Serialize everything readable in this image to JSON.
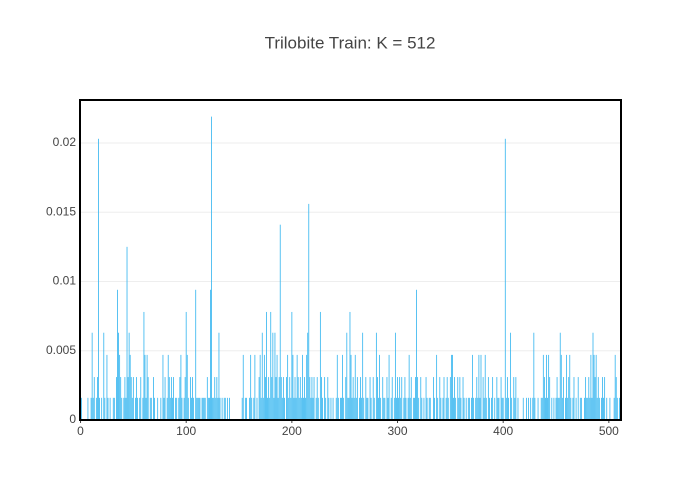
{
  "chart_data": {
    "type": "bar",
    "title": "Trilobite Train: K = 512",
    "color": "#3cb8f0",
    "xlim": [
      -0.5,
      511.5
    ],
    "xticks": [
      0,
      100,
      200,
      300,
      400,
      500
    ],
    "ylim": [
      0,
      0.0231
    ],
    "yticks": [
      0,
      0.005,
      0.01,
      0.015,
      0.02
    ],
    "grid": true,
    "values": [
      0.0063,
      0.0016,
      0,
      0,
      0,
      0,
      0,
      0.0016,
      0,
      0,
      0.0016,
      0.0063,
      0.0016,
      0.0031,
      0,
      0.0016,
      0.0031,
      0.0203,
      0.0016,
      0,
      0.0016,
      0,
      0.0063,
      0.0016,
      0,
      0.0047,
      0.0016,
      0,
      0.0016,
      0,
      0,
      0.0016,
      0.0016,
      0,
      0.0031,
      0.0094,
      0.0063,
      0.0047,
      0.0031,
      0.0016,
      0,
      0.0016,
      0.0031,
      0.0016,
      0.0125,
      0.0031,
      0.0063,
      0.0047,
      0.0031,
      0.0016,
      0.0031,
      0,
      0.0016,
      0.0031,
      0.0016,
      0,
      0.0016,
      0.0031,
      0,
      0.0016,
      0.0078,
      0.0047,
      0.0016,
      0.0047,
      0.0031,
      0,
      0.0016,
      0.0016,
      0,
      0.0031,
      0.0016,
      0,
      0,
      0.0016,
      0,
      0,
      0.0016,
      0,
      0.0047,
      0.0016,
      0.0031,
      0,
      0.0016,
      0.0047,
      0.0031,
      0.0016,
      0.0031,
      0.0016,
      0.0031,
      0,
      0.0016,
      0.0016,
      0,
      0.0016,
      0.0031,
      0.0047,
      0.0016,
      0,
      0.0016,
      0.0031,
      0.0078,
      0.0047,
      0.0016,
      0,
      0.0031,
      0.0016,
      0.0031,
      0.0016,
      0,
      0.0094,
      0.0016,
      0.0016,
      0.0016,
      0.0016,
      0,
      0.0016,
      0.0016,
      0.0016,
      0.0016,
      0,
      0.0031,
      0.0016,
      0.0016,
      0.0094,
      0.0219,
      0.0016,
      0.0016,
      0.0031,
      0.0016,
      0.0031,
      0.0016,
      0.0063,
      0.0016,
      0,
      0.0016,
      0,
      0.0016,
      0.0016,
      0,
      0.0016,
      0,
      0.0016,
      0,
      0,
      0,
      0,
      0,
      0,
      0,
      0,
      0,
      0,
      0,
      0.0016,
      0.0047,
      0,
      0.0016,
      0.0016,
      0,
      0,
      0.0016,
      0.0047,
      0.0016,
      0,
      0.0016,
      0.0047,
      0,
      0.0016,
      0,
      0.0031,
      0.0047,
      0.0016,
      0.0063,
      0.0016,
      0.0047,
      0.0031,
      0.0078,
      0.0016,
      0.0031,
      0.0016,
      0.0078,
      0.0031,
      0.0063,
      0.0016,
      0.0063,
      0.0031,
      0.0047,
      0.0016,
      0.0031,
      0.0141,
      0.0031,
      0.0016,
      0.0031,
      0.0016,
      0,
      0.0031,
      0.0047,
      0.0016,
      0.0031,
      0.0016,
      0.0078,
      0.0047,
      0.0016,
      0.0031,
      0.0016,
      0.0047,
      0.0031,
      0.0016,
      0.0031,
      0.0016,
      0.0047,
      0.0016,
      0.0031,
      0.0016,
      0.0047,
      0.0063,
      0.0156,
      0.0031,
      0.0016,
      0.0031,
      0.0016,
      0.0031,
      0,
      0.0016,
      0.0031,
      0.0016,
      0,
      0.0078,
      0.0031,
      0.0016,
      0,
      0.0031,
      0.0016,
      0,
      0.0031,
      0.0016,
      0,
      0.0016,
      0,
      0.0016,
      0,
      0,
      0.0016,
      0.0047,
      0.0016,
      0,
      0.0016,
      0.0016,
      0.0047,
      0.0016,
      0,
      0.0031,
      0.0063,
      0.0016,
      0.0016,
      0.0078,
      0.0047,
      0.0016,
      0.0031,
      0.0016,
      0.0047,
      0.0016,
      0.0031,
      0,
      0.0016,
      0.0031,
      0.0016,
      0.0063,
      0.0016,
      0,
      0.0031,
      0.0016,
      0.0016,
      0,
      0.0031,
      0.0016,
      0,
      0.0031,
      0.0016,
      0,
      0.0063,
      0.0031,
      0.0016,
      0.0047,
      0.0016,
      0,
      0.0031,
      0.0016,
      0.0016,
      0,
      0.0031,
      0.0016,
      0.0047,
      0,
      0.0016,
      0.0031,
      0,
      0.0016,
      0.0063,
      0.0016,
      0.0031,
      0.0016,
      0.0031,
      0.0016,
      0.0031,
      0,
      0.0016,
      0.0031,
      0.0016,
      0,
      0.0016,
      0.0047,
      0.0016,
      0.0031,
      0,
      0.0016,
      0.0016,
      0.0031,
      0.0094,
      0.0031,
      0.0016,
      0,
      0.0031,
      0.0016,
      0,
      0.0016,
      0,
      0.0031,
      0.0016,
      0,
      0.0016,
      0.0016,
      0,
      0,
      0.0031,
      0.0016,
      0,
      0.0047,
      0.0016,
      0,
      0.0031,
      0.0016,
      0,
      0.0016,
      0.0031,
      0,
      0.0016,
      0.0031,
      0.0016,
      0,
      0.0031,
      0.0047,
      0.0047,
      0.0016,
      0.0031,
      0.0016,
      0,
      0.0031,
      0.0016,
      0.0031,
      0.0016,
      0,
      0.0031,
      0.0016,
      0,
      0.0016,
      0,
      0.0016,
      0.0016,
      0,
      0.0016,
      0.0047,
      0.0016,
      0,
      0.0016,
      0.0031,
      0.0016,
      0.0047,
      0.0016,
      0.0047,
      0,
      0.0031,
      0.0016,
      0.0047,
      0.0016,
      0,
      0.0031,
      0.0016,
      0,
      0.0016,
      0.0031,
      0,
      0.0016,
      0,
      0.0031,
      0.0016,
      0.0016,
      0,
      0.0031,
      0.0016,
      0.0016,
      0,
      0.0203,
      0.0016,
      0.0031,
      0.0016,
      0,
      0.0063,
      0.0016,
      0,
      0.0031,
      0.0016,
      0.0031,
      0,
      0.0016,
      0,
      0,
      0,
      0,
      0.0016,
      0,
      0,
      0.0016,
      0,
      0.0016,
      0,
      0.0016,
      0,
      0.0016,
      0.0063,
      0.0016,
      0,
      0,
      0.0016,
      0,
      0,
      0.0016,
      0.0016,
      0.0047,
      0.0031,
      0.0016,
      0.0047,
      0.0016,
      0.0047,
      0.0031,
      0,
      0.0016,
      0,
      0.0016,
      0,
      0.0016,
      0.0031,
      0.0016,
      0.0016,
      0.0063,
      0.0047,
      0.0016,
      0.0031,
      0,
      0.0016,
      0.0047,
      0.0016,
      0.0031,
      0.0047,
      0.0016,
      0,
      0.0016,
      0.0031,
      0,
      0.0016,
      0,
      0.0031,
      0,
      0.0016,
      0.0016,
      0,
      0,
      0.0016,
      0.0031,
      0.0016,
      0.0016,
      0.0031,
      0.0016,
      0.0047,
      0.0016,
      0.0063,
      0.0047,
      0.0031,
      0.0047,
      0.0016,
      0.0031,
      0.0016,
      0,
      0.0016,
      0.0031,
      0.0016,
      0.0031,
      0,
      0.0016,
      0,
      0,
      0.0016,
      0,
      0,
      0,
      0.0016,
      0.0047,
      0.0031,
      0.0016,
      0,
      0.0016,
      0.0125
    ]
  }
}
